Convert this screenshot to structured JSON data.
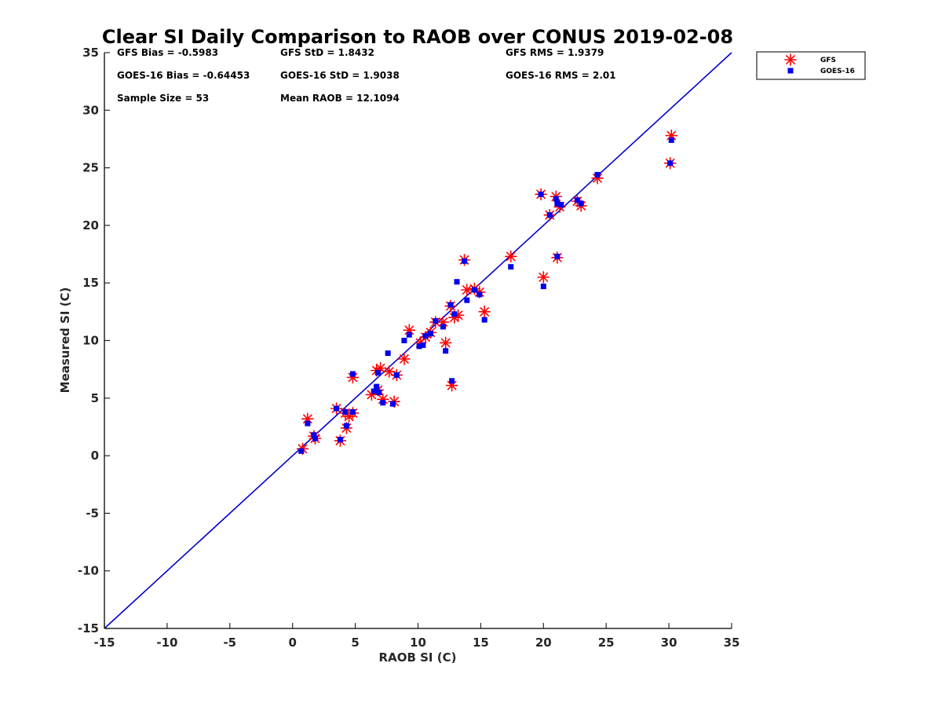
{
  "chart_data": {
    "type": "scatter",
    "title": "Clear SI Daily Comparison to RAOB over CONUS 2019-02-08",
    "xlabel": "RAOB SI (C)",
    "ylabel": "Measured SI (C)",
    "xlim": [
      -15,
      35
    ],
    "ylim": [
      -15,
      35
    ],
    "xticks": [
      -15,
      -10,
      -5,
      0,
      5,
      10,
      15,
      20,
      25,
      30,
      35
    ],
    "yticks": [
      -15,
      -10,
      -5,
      0,
      5,
      10,
      15,
      20,
      25,
      30,
      35
    ],
    "xtick_labels": [
      "-15",
      "-10",
      "-5",
      "0",
      "5",
      "10",
      "15",
      "20",
      "25",
      "30",
      "35"
    ],
    "ytick_labels": [
      "-15",
      "-10",
      "-5",
      "0",
      "5",
      "10",
      "15",
      "20",
      "25",
      "30",
      "35"
    ],
    "grid": false,
    "legend_position": "outside-top-right",
    "reference_line": {
      "type": "one-to-one",
      "color": "#0000cc"
    },
    "stats": [
      {
        "label": "GFS Bias = -0.5983"
      },
      {
        "label": "GFS StD = 1.8432"
      },
      {
        "label": "GFS RMS = 1.9379"
      },
      {
        "label": "GOES-16 Bias = -0.64453"
      },
      {
        "label": "GOES-16 StD = 1.9038"
      },
      {
        "label": "GOES-16 RMS = 2.01"
      },
      {
        "label": "Sample Size = 53"
      },
      {
        "label": "Mean RAOB = 12.1094"
      }
    ],
    "series": [
      {
        "name": "GFS",
        "marker": "asterisk",
        "color": "#ff0000",
        "points": [
          [
            0.8,
            0.6
          ],
          [
            1.2,
            3.2
          ],
          [
            1.7,
            1.7
          ],
          [
            1.8,
            1.5
          ],
          [
            3.5,
            4.1
          ],
          [
            3.8,
            1.3
          ],
          [
            4.2,
            3.7
          ],
          [
            4.3,
            2.4
          ],
          [
            4.5,
            3.4
          ],
          [
            4.8,
            6.8
          ],
          [
            4.8,
            3.7
          ],
          [
            6.3,
            5.3
          ],
          [
            6.7,
            7.4
          ],
          [
            6.8,
            5.7
          ],
          [
            7.0,
            7.6
          ],
          [
            7.2,
            4.9
          ],
          [
            7.7,
            7.3
          ],
          [
            8.1,
            4.7
          ],
          [
            8.3,
            7.0
          ],
          [
            8.9,
            8.4
          ],
          [
            9.3,
            10.9
          ],
          [
            10.2,
            9.8
          ],
          [
            10.6,
            10.3
          ],
          [
            11.0,
            10.7
          ],
          [
            11.4,
            11.6
          ],
          [
            12.0,
            11.6
          ],
          [
            12.2,
            9.8
          ],
          [
            12.6,
            13.0
          ],
          [
            12.7,
            6.1
          ],
          [
            12.9,
            12.0
          ],
          [
            13.2,
            12.2
          ],
          [
            13.7,
            17.0
          ],
          [
            13.9,
            14.4
          ],
          [
            14.5,
            14.5
          ],
          [
            14.9,
            14.2
          ],
          [
            15.3,
            12.5
          ],
          [
            17.4,
            17.3
          ],
          [
            19.8,
            22.7
          ],
          [
            20.0,
            15.5
          ],
          [
            20.5,
            20.9
          ],
          [
            21.0,
            22.5
          ],
          [
            21.1,
            17.2
          ],
          [
            21.3,
            21.6
          ],
          [
            22.7,
            22.1
          ],
          [
            23.0,
            21.7
          ],
          [
            24.3,
            24.1
          ],
          [
            30.1,
            25.4
          ],
          [
            30.2,
            27.8
          ]
        ]
      },
      {
        "name": "GOES-16",
        "marker": "square",
        "color": "#0000ee",
        "points": [
          [
            0.7,
            0.4
          ],
          [
            1.2,
            2.8
          ],
          [
            1.7,
            1.8
          ],
          [
            1.8,
            1.5
          ],
          [
            3.5,
            4.1
          ],
          [
            3.8,
            1.4
          ],
          [
            4.2,
            3.8
          ],
          [
            4.3,
            2.6
          ],
          [
            4.8,
            7.1
          ],
          [
            4.8,
            3.8
          ],
          [
            6.5,
            5.6
          ],
          [
            6.7,
            6.0
          ],
          [
            6.8,
            7.2
          ],
          [
            6.9,
            5.5
          ],
          [
            7.2,
            4.6
          ],
          [
            7.6,
            8.9
          ],
          [
            8.0,
            4.5
          ],
          [
            8.3,
            7.0
          ],
          [
            8.9,
            10.0
          ],
          [
            9.3,
            10.5
          ],
          [
            10.1,
            9.5
          ],
          [
            10.4,
            9.6
          ],
          [
            10.6,
            10.4
          ],
          [
            11.0,
            10.6
          ],
          [
            11.4,
            11.7
          ],
          [
            12.0,
            11.2
          ],
          [
            12.2,
            9.1
          ],
          [
            12.6,
            13.1
          ],
          [
            12.7,
            6.5
          ],
          [
            12.9,
            12.3
          ],
          [
            13.1,
            15.1
          ],
          [
            13.7,
            16.9
          ],
          [
            13.9,
            13.5
          ],
          [
            14.5,
            14.4
          ],
          [
            14.9,
            14.0
          ],
          [
            15.3,
            11.8
          ],
          [
            17.4,
            16.4
          ],
          [
            19.8,
            22.7
          ],
          [
            20.0,
            14.7
          ],
          [
            20.5,
            20.9
          ],
          [
            21.0,
            22.3
          ],
          [
            21.1,
            17.3
          ],
          [
            21.1,
            21.9
          ],
          [
            21.4,
            21.8
          ],
          [
            22.7,
            22.2
          ],
          [
            23.0,
            21.9
          ],
          [
            24.3,
            24.4
          ],
          [
            30.1,
            25.4
          ],
          [
            30.2,
            27.4
          ]
        ]
      }
    ]
  }
}
